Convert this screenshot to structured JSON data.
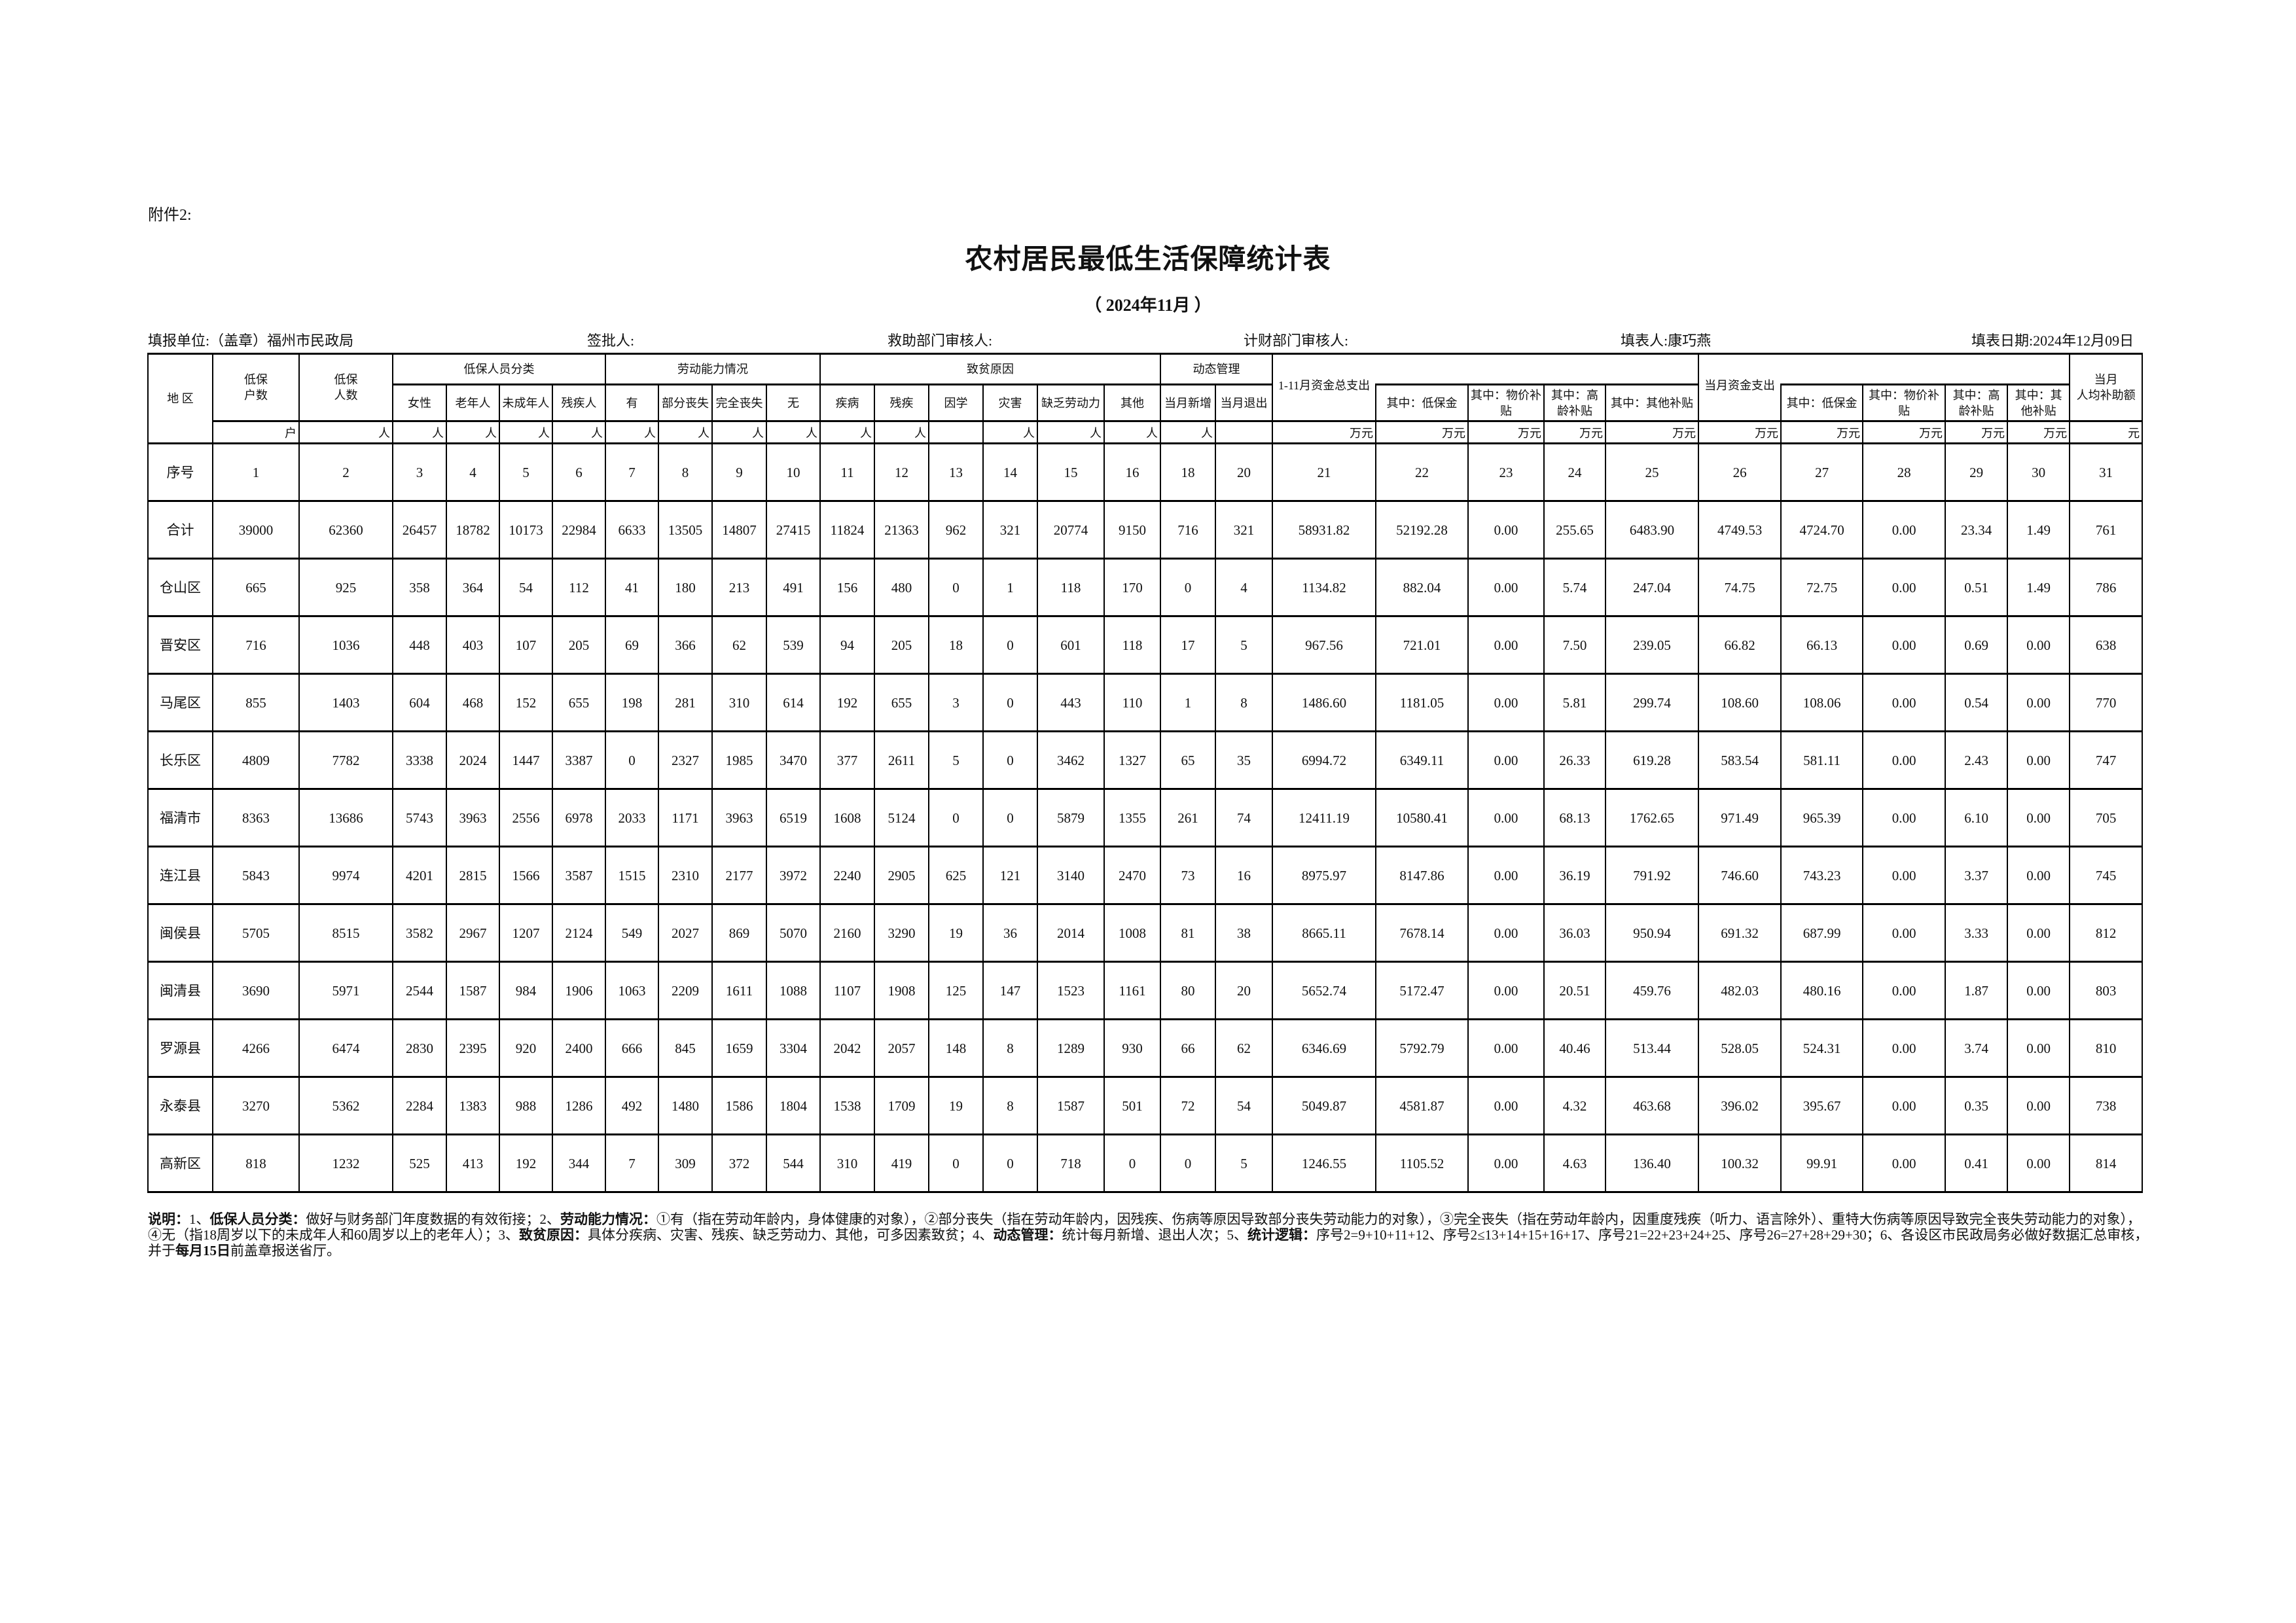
{
  "header": {
    "attachment": "附件2:",
    "title": "农村居民最低生活保障统计表",
    "period": "（ 2024年11月 ）"
  },
  "info": {
    "unit": "填报单位:（盖章）福州市民政局",
    "approver": "签批人:",
    "relief_reviewer": "救助部门审核人:",
    "finance_reviewer": "计财部门审核人:",
    "filler": "填表人:康巧燕",
    "date": "填表日期:2024年12月09日"
  },
  "table": {
    "groups": {
      "region": "地 区",
      "households": "低保\n户数",
      "persons": "低保\n人数",
      "classification": "低保人员分类",
      "labor": "劳动能力情况",
      "causes": "致贫原因",
      "dynamic": "动态管理",
      "total_expense": "1-11月资金总支出",
      "month_expense": "当月资金支出",
      "avg_subsidy": "当月\n人均补助额"
    },
    "subheaders": [
      "女性",
      "老年人",
      "未成年人",
      "残疾人",
      "有",
      "部分丧失",
      "完全丧失",
      "无",
      "疾病",
      "残疾",
      "因学",
      "灾害",
      "缺乏劳动力",
      "其他",
      "当月新增",
      "当月退出",
      "其中：低保金",
      "其中：物价补贴",
      "其中：高龄补贴",
      "其中：其他补贴",
      "其中：低保金",
      "其中：物价补贴",
      "其中：高龄补贴",
      "其中：其他补贴"
    ],
    "units": [
      "户",
      "人",
      "人",
      "人",
      "人",
      "人",
      "人",
      "人",
      "人",
      "人",
      "人",
      "人",
      "",
      "人",
      "人",
      "人",
      "人",
      "",
      "万元",
      "万元",
      "万元",
      "万元",
      "万元",
      "万元",
      "万元",
      "万元",
      "万元",
      "万元",
      "元"
    ],
    "serial_label": "序号",
    "serials": [
      "1",
      "2",
      "3",
      "4",
      "5",
      "6",
      "7",
      "8",
      "9",
      "10",
      "11",
      "12",
      "13",
      "14",
      "15",
      "16",
      "18",
      "20",
      "21",
      "22",
      "23",
      "24",
      "25",
      "26",
      "27",
      "28",
      "29",
      "30",
      "31"
    ],
    "rows": [
      {
        "region": "合计",
        "values": [
          "39000",
          "62360",
          "26457",
          "18782",
          "10173",
          "22984",
          "6633",
          "13505",
          "14807",
          "27415",
          "11824",
          "21363",
          "962",
          "321",
          "20774",
          "9150",
          "716",
          "321",
          "58931.82",
          "52192.28",
          "0.00",
          "255.65",
          "6483.90",
          "4749.53",
          "4724.70",
          "0.00",
          "23.34",
          "1.49",
          "761"
        ]
      },
      {
        "region": "仓山区",
        "values": [
          "665",
          "925",
          "358",
          "364",
          "54",
          "112",
          "41",
          "180",
          "213",
          "491",
          "156",
          "480",
          "0",
          "1",
          "118",
          "170",
          "0",
          "4",
          "1134.82",
          "882.04",
          "0.00",
          "5.74",
          "247.04",
          "74.75",
          "72.75",
          "0.00",
          "0.51",
          "1.49",
          "786"
        ]
      },
      {
        "region": "晋安区",
        "values": [
          "716",
          "1036",
          "448",
          "403",
          "107",
          "205",
          "69",
          "366",
          "62",
          "539",
          "94",
          "205",
          "18",
          "0",
          "601",
          "118",
          "17",
          "5",
          "967.56",
          "721.01",
          "0.00",
          "7.50",
          "239.05",
          "66.82",
          "66.13",
          "0.00",
          "0.69",
          "0.00",
          "638"
        ]
      },
      {
        "region": "马尾区",
        "values": [
          "855",
          "1403",
          "604",
          "468",
          "152",
          "655",
          "198",
          "281",
          "310",
          "614",
          "192",
          "655",
          "3",
          "0",
          "443",
          "110",
          "1",
          "8",
          "1486.60",
          "1181.05",
          "0.00",
          "5.81",
          "299.74",
          "108.60",
          "108.06",
          "0.00",
          "0.54",
          "0.00",
          "770"
        ]
      },
      {
        "region": "长乐区",
        "values": [
          "4809",
          "7782",
          "3338",
          "2024",
          "1447",
          "3387",
          "0",
          "2327",
          "1985",
          "3470",
          "377",
          "2611",
          "5",
          "0",
          "3462",
          "1327",
          "65",
          "35",
          "6994.72",
          "6349.11",
          "0.00",
          "26.33",
          "619.28",
          "583.54",
          "581.11",
          "0.00",
          "2.43",
          "0.00",
          "747"
        ]
      },
      {
        "region": "福清市",
        "values": [
          "8363",
          "13686",
          "5743",
          "3963",
          "2556",
          "6978",
          "2033",
          "1171",
          "3963",
          "6519",
          "1608",
          "5124",
          "0",
          "0",
          "5879",
          "1355",
          "261",
          "74",
          "12411.19",
          "10580.41",
          "0.00",
          "68.13",
          "1762.65",
          "971.49",
          "965.39",
          "0.00",
          "6.10",
          "0.00",
          "705"
        ]
      },
      {
        "region": "连江县",
        "values": [
          "5843",
          "9974",
          "4201",
          "2815",
          "1566",
          "3587",
          "1515",
          "2310",
          "2177",
          "3972",
          "2240",
          "2905",
          "625",
          "121",
          "3140",
          "2470",
          "73",
          "16",
          "8975.97",
          "8147.86",
          "0.00",
          "36.19",
          "791.92",
          "746.60",
          "743.23",
          "0.00",
          "3.37",
          "0.00",
          "745"
        ]
      },
      {
        "region": "闽侯县",
        "values": [
          "5705",
          "8515",
          "3582",
          "2967",
          "1207",
          "2124",
          "549",
          "2027",
          "869",
          "5070",
          "2160",
          "3290",
          "19",
          "36",
          "2014",
          "1008",
          "81",
          "38",
          "8665.11",
          "7678.14",
          "0.00",
          "36.03",
          "950.94",
          "691.32",
          "687.99",
          "0.00",
          "3.33",
          "0.00",
          "812"
        ]
      },
      {
        "region": "闽清县",
        "values": [
          "3690",
          "5971",
          "2544",
          "1587",
          "984",
          "1906",
          "1063",
          "2209",
          "1611",
          "1088",
          "1107",
          "1908",
          "125",
          "147",
          "1523",
          "1161",
          "80",
          "20",
          "5652.74",
          "5172.47",
          "0.00",
          "20.51",
          "459.76",
          "482.03",
          "480.16",
          "0.00",
          "1.87",
          "0.00",
          "803"
        ]
      },
      {
        "region": "罗源县",
        "values": [
          "4266",
          "6474",
          "2830",
          "2395",
          "920",
          "2400",
          "666",
          "845",
          "1659",
          "3304",
          "2042",
          "2057",
          "148",
          "8",
          "1289",
          "930",
          "66",
          "62",
          "6346.69",
          "5792.79",
          "0.00",
          "40.46",
          "513.44",
          "528.05",
          "524.31",
          "0.00",
          "3.74",
          "0.00",
          "810"
        ]
      },
      {
        "region": "永泰县",
        "values": [
          "3270",
          "5362",
          "2284",
          "1383",
          "988",
          "1286",
          "492",
          "1480",
          "1586",
          "1804",
          "1538",
          "1709",
          "19",
          "8",
          "1587",
          "501",
          "72",
          "54",
          "5049.87",
          "4581.87",
          "0.00",
          "4.32",
          "463.68",
          "396.02",
          "395.67",
          "0.00",
          "0.35",
          "0.00",
          "738"
        ]
      },
      {
        "region": "高新区",
        "values": [
          "818",
          "1232",
          "525",
          "413",
          "192",
          "344",
          "7",
          "309",
          "372",
          "544",
          "310",
          "419",
          "0",
          "0",
          "718",
          "0",
          "0",
          "5",
          "1246.55",
          "1105.52",
          "0.00",
          "4.63",
          "136.40",
          "100.32",
          "99.91",
          "0.00",
          "0.41",
          "0.00",
          "814"
        ]
      }
    ]
  },
  "notes": [
    {
      "text": "说明：",
      "bold": true
    },
    {
      "text": "1、",
      "bold": false
    },
    {
      "text": "低保人员分类：",
      "bold": true
    },
    {
      "text": "做好与财务部门年度数据的有效衔接；2、",
      "bold": false
    },
    {
      "text": "劳动能力情况：",
      "bold": true
    },
    {
      "text": "①有（指在劳动年龄内，身体健康的对象），②部分丧失（指在劳动年龄内，因残疾、伤病等原因导致部分丧失劳动能力的对象），③完全丧失（指在劳动年龄内，因重度残疾（听力、语言除外）、重特大伤病等原因导致完全丧失劳动能力的对象），④无（指18周岁以下的未成年人和60周岁以上的老年人）；3、",
      "bold": false
    },
    {
      "text": "致贫原因：",
      "bold": true
    },
    {
      "text": "具体分疾病、灾害、残疾、缺乏劳动力、其他，可多因素致贫；4、",
      "bold": false
    },
    {
      "text": "动态管理：",
      "bold": true
    },
    {
      "text": "统计每月新增、退出人次；5、",
      "bold": false
    },
    {
      "text": "统计逻辑：",
      "bold": true
    },
    {
      "text": "序号2=9+10+11+12、序号2≤13+14+15+16+17、序号21=22+23+24+25、序号26=27+28+29+30；6、各设区市民政局务必做好数据汇总审核，并于",
      "bold": false
    },
    {
      "text": "每月15日",
      "bold": true
    },
    {
      "text": "前盖章报送省厅。",
      "bold": false
    }
  ]
}
